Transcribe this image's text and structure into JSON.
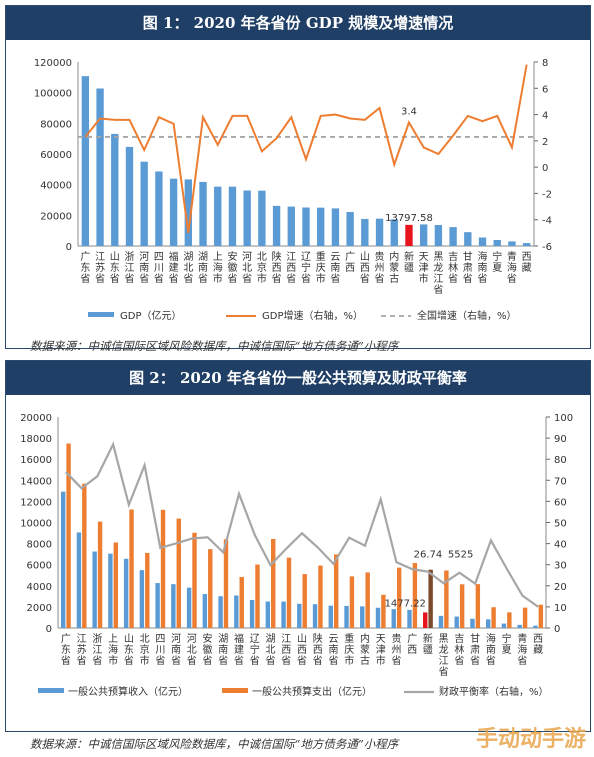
{
  "figure1": {
    "title": "图 1：  2020 年各省份 GDP 规模及增速情况",
    "source": "数据来源：中诚信国际区域风险数据库，中诚信国际“地方债务通”小程序"
  },
  "figure2": {
    "title": "图 2：  2020 年各省份一般公共预算及财政平衡率",
    "source": "数据来源：中诚信国际区域风险数据库，中诚信国际“地方债务通”小程序"
  },
  "watermark": "手动动手游",
  "colors": {
    "header": "#1f3f66",
    "blue": "#5b9bd5",
    "orange": "#ed7d31",
    "red": "#e8141b",
    "gray": "#a6a6a6",
    "dark": "#7a4a2a"
  },
  "chart_data": [
    {
      "type": "bar",
      "categories": [
        "广东省",
        "江苏省",
        "山东省",
        "浙江省",
        "河南省",
        "四川省",
        "福建省",
        "湖北省",
        "湖南省",
        "上海市",
        "安徽省",
        "河北省",
        "北京市",
        "陕西省",
        "江西省",
        "辽宁省",
        "重庆市",
        "云南省",
        "广西",
        "山西省",
        "贵州省",
        "内蒙古",
        "新疆",
        "天津市",
        "黑龙江省",
        "吉林省",
        "甘肃省",
        "海南省",
        "宁夏",
        "青海省",
        "西藏"
      ],
      "series": [
        {
          "name": "GDP（亿元）",
          "axis": "left",
          "values": [
            110761,
            102719,
            73129,
            64613,
            54997,
            48599,
            43904,
            43443,
            41781,
            38701,
            38681,
            36207,
            36103,
            26182,
            25692,
            25115,
            25003,
            24522,
            22157,
            17652,
            17827,
            17360,
            13798,
            14084,
            13699,
            12311,
            9017,
            5532,
            3921,
            3006,
            1903
          ]
        },
        {
          "name": "GDP增速（右轴，%）",
          "axis": "right",
          "values": [
            2.3,
            3.7,
            3.6,
            3.6,
            1.3,
            3.8,
            3.3,
            -5.0,
            3.8,
            1.7,
            3.9,
            3.9,
            1.2,
            2.2,
            3.8,
            0.6,
            3.9,
            4.0,
            3.7,
            3.6,
            4.5,
            0.2,
            3.4,
            1.5,
            1.0,
            2.4,
            3.9,
            3.5,
            3.9,
            1.5,
            7.8
          ]
        },
        {
          "name": "全国增速（右轴，%）",
          "axis": "right",
          "value": 2.3
        }
      ],
      "annotations": [
        "3.4",
        "13797.58"
      ],
      "yticks_left": [
        "0",
        "20000",
        "40000",
        "60000",
        "80000",
        "100000",
        "120000"
      ],
      "yticks_right": [
        "-6",
        "-4",
        "-2",
        "0",
        "2",
        "4",
        "6",
        "8"
      ],
      "ylim_left": [
        0,
        120000
      ],
      "ylim_right": [
        -6,
        8
      ]
    },
    {
      "type": "bar",
      "categories": [
        "广东省",
        "江苏省",
        "浙江省",
        "上海市",
        "山东省",
        "北京市",
        "四川省",
        "河南省",
        "河北省",
        "安徽省",
        "湖南省",
        "福建省",
        "辽宁省",
        "湖北省",
        "江西省",
        "山西省",
        "陕西省",
        "云南省",
        "重庆市",
        "内蒙古",
        "天津市",
        "贵州省",
        "广西",
        "新疆",
        "黑龙江省",
        "吉林省",
        "甘肃省",
        "海南省",
        "宁夏",
        "青海省",
        "西藏"
      ],
      "series": [
        {
          "name": "一般公共预算收入（亿元）",
          "axis": "left",
          "values": [
            12923,
            9059,
            7248,
            7046,
            6560,
            5484,
            4258,
            4155,
            3826,
            3216,
            3009,
            3079,
            2655,
            2512,
            2507,
            2297,
            2257,
            2117,
            2095,
            2052,
            1923,
            1786,
            1717,
            1477,
            1153,
            1085,
            874,
            817,
            419,
            298,
            221
          ]
        },
        {
          "name": "一般公共预算支出（亿元）",
          "axis": "left",
          "values": [
            17485,
            13682,
            10082,
            8102,
            11233,
            7116,
            11201,
            10373,
            9022,
            7474,
            8403,
            4838,
            6015,
            8439,
            6666,
            5111,
            5916,
            6974,
            4894,
            5268,
            3151,
            5723,
            6155,
            5525,
            5449,
            4142,
            4155,
            1969,
            1483,
            1930,
            2207
          ]
        },
        {
          "name": "财政平衡率（右轴，%）",
          "axis": "right",
          "values": [
            73.9,
            66.2,
            71.9,
            87.0,
            58.4,
            77.1,
            38.0,
            40.1,
            42.4,
            43.0,
            35.8,
            63.6,
            44.1,
            29.8,
            37.6,
            44.9,
            38.2,
            30.4,
            42.8,
            39.0,
            61.0,
            31.2,
            27.9,
            26.7,
            21.2,
            26.2,
            21.0,
            41.5,
            28.2,
            15.4,
            10.0
          ]
        }
      ],
      "annotations": [
        "26.74",
        "5525",
        "1477.22"
      ],
      "yticks_left": [
        "0",
        "2000",
        "4000",
        "6000",
        "8000",
        "10000",
        "12000",
        "14000",
        "16000",
        "18000",
        "20000"
      ],
      "yticks_right": [
        "0",
        "10",
        "20",
        "30",
        "40",
        "50",
        "60",
        "70",
        "80",
        "90",
        "100"
      ],
      "ylim_left": [
        0,
        20000
      ],
      "ylim_right": [
        0,
        100
      ]
    }
  ]
}
